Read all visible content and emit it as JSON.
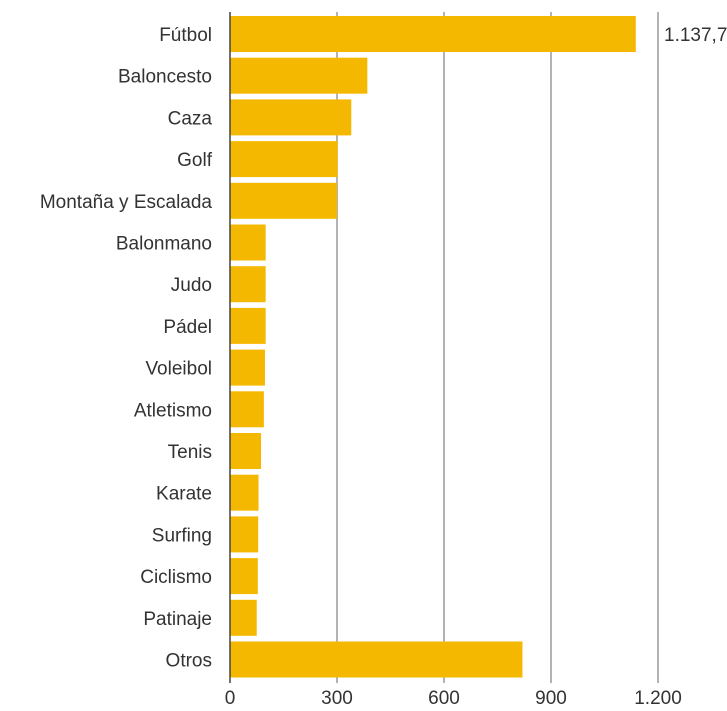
{
  "chart_data": {
    "type": "bar",
    "orientation": "horizontal",
    "categories": [
      "Fútbol",
      "Baloncesto",
      "Caza",
      "Golf",
      "Montaña y Escalada",
      "Balonmano",
      "Judo",
      "Pádel",
      "Voleibol",
      "Atletismo",
      "Tenis",
      "Karate",
      "Surfing",
      "Ciclismo",
      "Patinaje",
      "Otros"
    ],
    "values": [
      1137.7,
      385,
      340,
      302,
      300,
      100,
      100,
      100,
      98,
      95,
      87,
      80,
      79,
      78,
      75,
      820
    ],
    "data_labels": [
      {
        "category": "Fútbol",
        "text": "1.137,7"
      }
    ],
    "xlim": [
      0,
      1200
    ],
    "xticks": [
      0,
      300,
      600,
      900,
      1200
    ],
    "xtick_labels": [
      "0",
      "300",
      "600",
      "900",
      "1.200"
    ],
    "grid": true,
    "bar_color": "#F5B800",
    "title": "",
    "xlabel": "",
    "ylabel": ""
  }
}
